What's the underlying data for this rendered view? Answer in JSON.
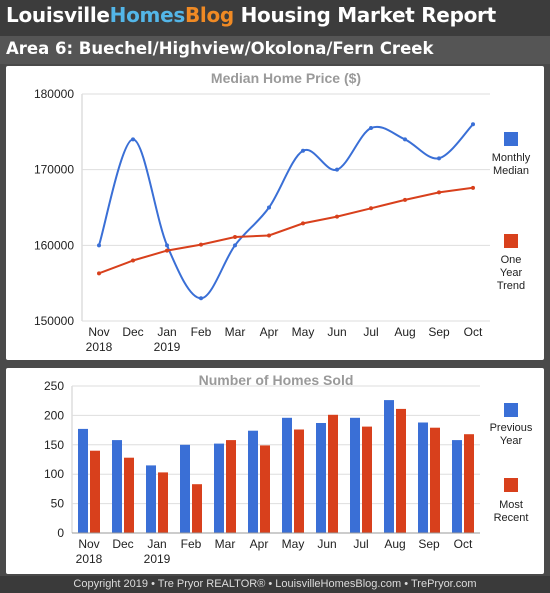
{
  "header": {
    "brand": {
      "part1": "Louisville",
      "part2": "Homes",
      "part3": "Blog"
    },
    "title": "Housing Market Report",
    "colors": {
      "white": "#ffffff",
      "blue": "#53b6e8",
      "orange": "#f08a24"
    }
  },
  "area_title": "Area 6: Buechel/Highview/Okolona/Fern Creek",
  "chart_data": [
    {
      "type": "line",
      "title": "Median Home Price ($)",
      "categories": [
        "Nov",
        "Dec",
        "Jan",
        "Feb",
        "Mar",
        "Apr",
        "May",
        "Jun",
        "Jul",
        "Aug",
        "Sep",
        "Oct"
      ],
      "category_years": [
        "2018",
        "",
        "2019",
        "",
        "",
        "",
        "",
        "",
        "",
        "",
        "",
        ""
      ],
      "ylim": [
        150000,
        180000
      ],
      "yticks": [
        "150000",
        "160000",
        "170000",
        "180000"
      ],
      "grid": true,
      "legend_position": "right",
      "series": [
        {
          "name": "Monthly Median",
          "color": "#3a6fd6",
          "smooth": true,
          "values": [
            160000,
            174000,
            160000,
            153000,
            160000,
            165000,
            172500,
            170000,
            175500,
            174000,
            171500,
            176000
          ]
        },
        {
          "name": "One Year Trend",
          "color": "#d8401c",
          "smooth": false,
          "values": [
            156300,
            158000,
            159300,
            160100,
            161100,
            161300,
            162900,
            163800,
            164900,
            166000,
            167000,
            167600
          ]
        }
      ]
    },
    {
      "type": "bar",
      "title": "Number of Homes Sold",
      "categories": [
        "Nov",
        "Dec",
        "Jan",
        "Feb",
        "Mar",
        "Apr",
        "May",
        "Jun",
        "Jul",
        "Aug",
        "Sep",
        "Oct"
      ],
      "category_years": [
        "2018",
        "",
        "2019",
        "",
        "",
        "",
        "",
        "",
        "",
        "",
        "",
        ""
      ],
      "ylim": [
        0,
        250
      ],
      "yticks": [
        "0",
        "50",
        "100",
        "150",
        "200",
        "250"
      ],
      "grid": true,
      "legend_position": "right",
      "series": [
        {
          "name": "Previous Year",
          "color": "#3a6fd6",
          "values": [
            177,
            158,
            115,
            150,
            152,
            174,
            196,
            187,
            196,
            226,
            188,
            158
          ]
        },
        {
          "name": "Most Recent",
          "color": "#d8401c",
          "values": [
            140,
            128,
            103,
            83,
            158,
            149,
            176,
            201,
            181,
            211,
            179,
            168
          ]
        }
      ]
    }
  ],
  "footer": "Copyright 2019 • Tre Pryor REALTOR® • LouisvilleHomesBlog.com • TrePryor.com"
}
